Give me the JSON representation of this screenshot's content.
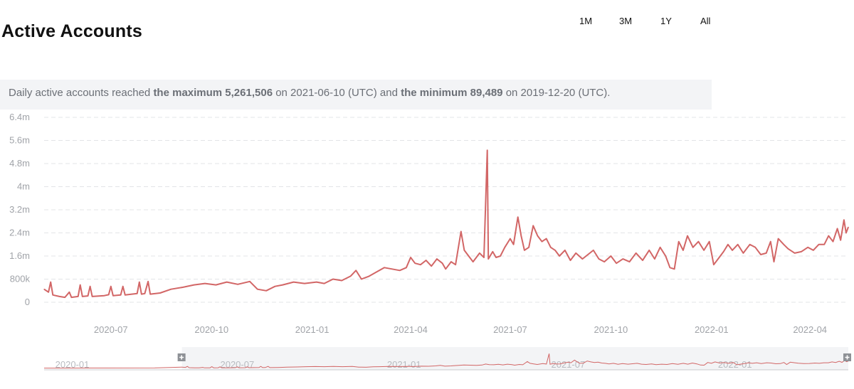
{
  "header": {
    "title": "Active Accounts",
    "range_buttons": [
      "1M",
      "3M",
      "1Y",
      "All"
    ]
  },
  "summary": {
    "prefix": "Daily active accounts reached ",
    "max_label": "the maximum 5,261,506",
    "mid": " on 2021-06-10 (UTC) and ",
    "min_label": "the minimum 89,489",
    "suffix": " on 2019-12-20 (UTC)."
  },
  "colors": {
    "line": "#d26666",
    "grid": "#e3e4e7",
    "navigator_mask": "#f3f4f6"
  },
  "chart_data": {
    "type": "line",
    "title": "Active Accounts",
    "series": [
      {
        "name": "Daily active accounts",
        "points": [
          [
            "2020-05-01",
            450000
          ],
          [
            "2020-05-05",
            350000
          ],
          [
            "2020-05-07",
            700000
          ],
          [
            "2020-05-09",
            250000
          ],
          [
            "2020-05-15",
            200000
          ],
          [
            "2020-05-20",
            170000
          ],
          [
            "2020-05-24",
            350000
          ],
          [
            "2020-05-26",
            170000
          ],
          [
            "2020-06-01",
            200000
          ],
          [
            "2020-06-03",
            600000
          ],
          [
            "2020-06-05",
            200000
          ],
          [
            "2020-06-10",
            220000
          ],
          [
            "2020-06-12",
            550000
          ],
          [
            "2020-06-14",
            200000
          ],
          [
            "2020-06-25",
            230000
          ],
          [
            "2020-06-29",
            260000
          ],
          [
            "2020-07-01",
            550000
          ],
          [
            "2020-07-03",
            230000
          ],
          [
            "2020-07-10",
            250000
          ],
          [
            "2020-07-12",
            550000
          ],
          [
            "2020-07-14",
            250000
          ],
          [
            "2020-07-25",
            300000
          ],
          [
            "2020-07-27",
            700000
          ],
          [
            "2020-07-29",
            280000
          ],
          [
            "2020-08-01",
            300000
          ],
          [
            "2020-08-04",
            720000
          ],
          [
            "2020-08-06",
            280000
          ],
          [
            "2020-08-15",
            320000
          ],
          [
            "2020-08-25",
            450000
          ],
          [
            "2020-09-05",
            520000
          ],
          [
            "2020-09-15",
            600000
          ],
          [
            "2020-09-25",
            650000
          ],
          [
            "2020-10-05",
            600000
          ],
          [
            "2020-10-15",
            700000
          ],
          [
            "2020-10-25",
            620000
          ],
          [
            "2020-11-05",
            720000
          ],
          [
            "2020-11-12",
            450000
          ],
          [
            "2020-11-20",
            400000
          ],
          [
            "2020-11-28",
            550000
          ],
          [
            "2020-12-05",
            600000
          ],
          [
            "2020-12-15",
            700000
          ],
          [
            "2020-12-25",
            650000
          ],
          [
            "2021-01-05",
            700000
          ],
          [
            "2021-01-12",
            650000
          ],
          [
            "2021-01-20",
            800000
          ],
          [
            "2021-01-28",
            750000
          ],
          [
            "2021-02-05",
            900000
          ],
          [
            "2021-02-10",
            1100000
          ],
          [
            "2021-02-15",
            800000
          ],
          [
            "2021-02-22",
            900000
          ],
          [
            "2021-03-01",
            1050000
          ],
          [
            "2021-03-08",
            1200000
          ],
          [
            "2021-03-15",
            1150000
          ],
          [
            "2021-03-22",
            1100000
          ],
          [
            "2021-03-28",
            1200000
          ],
          [
            "2021-04-01",
            1550000
          ],
          [
            "2021-04-05",
            1350000
          ],
          [
            "2021-04-10",
            1300000
          ],
          [
            "2021-04-15",
            1450000
          ],
          [
            "2021-04-20",
            1250000
          ],
          [
            "2021-04-25",
            1500000
          ],
          [
            "2021-04-30",
            1350000
          ],
          [
            "2021-05-03",
            1150000
          ],
          [
            "2021-05-08",
            1400000
          ],
          [
            "2021-05-12",
            1300000
          ],
          [
            "2021-05-17",
            2450000
          ],
          [
            "2021-05-20",
            1800000
          ],
          [
            "2021-05-24",
            1600000
          ],
          [
            "2021-05-28",
            1400000
          ],
          [
            "2021-06-03",
            1700000
          ],
          [
            "2021-06-07",
            1550000
          ],
          [
            "2021-06-10",
            5261506
          ],
          [
            "2021-06-11",
            1500000
          ],
          [
            "2021-06-15",
            1750000
          ],
          [
            "2021-06-18",
            1550000
          ],
          [
            "2021-06-22",
            1600000
          ],
          [
            "2021-06-26",
            1900000
          ],
          [
            "2021-07-01",
            2200000
          ],
          [
            "2021-07-04",
            2000000
          ],
          [
            "2021-07-08",
            2950000
          ],
          [
            "2021-07-11",
            2300000
          ],
          [
            "2021-07-14",
            1800000
          ],
          [
            "2021-07-18",
            1900000
          ],
          [
            "2021-07-22",
            2650000
          ],
          [
            "2021-07-26",
            2300000
          ],
          [
            "2021-07-30",
            2100000
          ],
          [
            "2021-08-03",
            2200000
          ],
          [
            "2021-08-07",
            1900000
          ],
          [
            "2021-08-11",
            1800000
          ],
          [
            "2021-08-15",
            1600000
          ],
          [
            "2021-08-20",
            1800000
          ],
          [
            "2021-08-25",
            1450000
          ],
          [
            "2021-08-30",
            1700000
          ],
          [
            "2021-09-05",
            1500000
          ],
          [
            "2021-09-10",
            1650000
          ],
          [
            "2021-09-15",
            1800000
          ],
          [
            "2021-09-20",
            1500000
          ],
          [
            "2021-09-25",
            1400000
          ],
          [
            "2021-10-01",
            1600000
          ],
          [
            "2021-10-06",
            1350000
          ],
          [
            "2021-10-12",
            1500000
          ],
          [
            "2021-10-18",
            1400000
          ],
          [
            "2021-10-24",
            1700000
          ],
          [
            "2021-10-30",
            1450000
          ],
          [
            "2021-11-05",
            1800000
          ],
          [
            "2021-11-10",
            1500000
          ],
          [
            "2021-11-15",
            1900000
          ],
          [
            "2021-11-20",
            1600000
          ],
          [
            "2021-11-24",
            1200000
          ],
          [
            "2021-11-28",
            1150000
          ],
          [
            "2021-12-02",
            2100000
          ],
          [
            "2021-12-06",
            1800000
          ],
          [
            "2021-12-10",
            2300000
          ],
          [
            "2021-12-15",
            1900000
          ],
          [
            "2021-12-20",
            2100000
          ],
          [
            "2021-12-25",
            1800000
          ],
          [
            "2021-12-30",
            2100000
          ],
          [
            "2022-01-03",
            1300000
          ],
          [
            "2022-01-07",
            1500000
          ],
          [
            "2022-01-12",
            1750000
          ],
          [
            "2022-01-16",
            2000000
          ],
          [
            "2022-01-20",
            1800000
          ],
          [
            "2022-01-25",
            2000000
          ],
          [
            "2022-01-30",
            1700000
          ],
          [
            "2022-02-05",
            2000000
          ],
          [
            "2022-02-10",
            1900000
          ],
          [
            "2022-02-15",
            1650000
          ],
          [
            "2022-02-20",
            1700000
          ],
          [
            "2022-02-24",
            2100000
          ],
          [
            "2022-02-27",
            1400000
          ],
          [
            "2022-03-03",
            2200000
          ],
          [
            "2022-03-08",
            2000000
          ],
          [
            "2022-03-12",
            1850000
          ],
          [
            "2022-03-18",
            1700000
          ],
          [
            "2022-03-24",
            1750000
          ],
          [
            "2022-03-30",
            1900000
          ],
          [
            "2022-04-04",
            1800000
          ],
          [
            "2022-04-09",
            2000000
          ],
          [
            "2022-04-14",
            2000000
          ],
          [
            "2022-04-18",
            2300000
          ],
          [
            "2022-04-22",
            2100000
          ],
          [
            "2022-04-26",
            2550000
          ],
          [
            "2022-04-29",
            2150000
          ],
          [
            "2022-05-02",
            2850000
          ],
          [
            "2022-05-04",
            2400000
          ],
          [
            "2022-05-06",
            2600000
          ]
        ]
      }
    ],
    "x_ticks": [
      "2020-07",
      "2020-10",
      "2021-01",
      "2021-04",
      "2021-07",
      "2021-10",
      "2022-01",
      "2022-04"
    ],
    "x_range": [
      "2020-05-01",
      "2022-05-06"
    ],
    "y_ticks": [
      "0",
      "800k",
      "1.6m",
      "2.4m",
      "3.2m",
      "4m",
      "4.8m",
      "5.6m",
      "6.4m"
    ],
    "ylim": [
      0,
      6400000
    ],
    "grid": true,
    "legend": "none",
    "navigator": {
      "x_ticks": [
        "2020-01",
        "2020-07",
        "2021-01",
        "2021-07",
        "2022-01"
      ],
      "x_range": [
        "2019-12-01",
        "2022-05-06"
      ],
      "selected_range": [
        "2020-05-01",
        "2022-05-06"
      ]
    }
  }
}
